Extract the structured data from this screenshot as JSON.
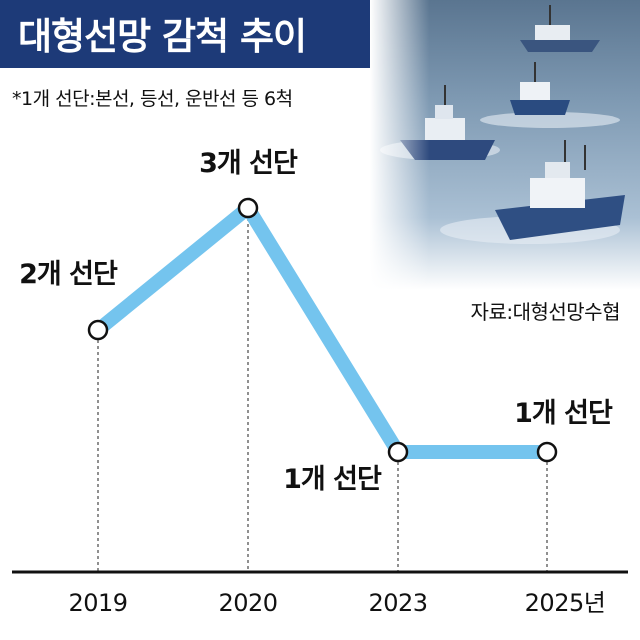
{
  "title": "대형선망 감척 추이",
  "note": "*1개 선단:본선, 등선, 운반선 등 6척",
  "source": "자료:대형선망수협",
  "colors": {
    "title_bg": "#1d3a78",
    "line": "#74c4ee",
    "marker_fill": "#ffffff",
    "marker_stroke": "#111111",
    "axis": "#111111"
  },
  "chart_data": {
    "type": "line",
    "categories": [
      "2019",
      "2020",
      "2023",
      "2025년"
    ],
    "values": [
      2,
      3,
      1,
      1
    ],
    "data_labels": [
      "2개 선단",
      "3개 선단",
      "1개 선단",
      "1개 선단"
    ],
    "unit": "개 선단",
    "ylim": [
      1,
      3
    ],
    "grid": false,
    "legend": "none"
  }
}
